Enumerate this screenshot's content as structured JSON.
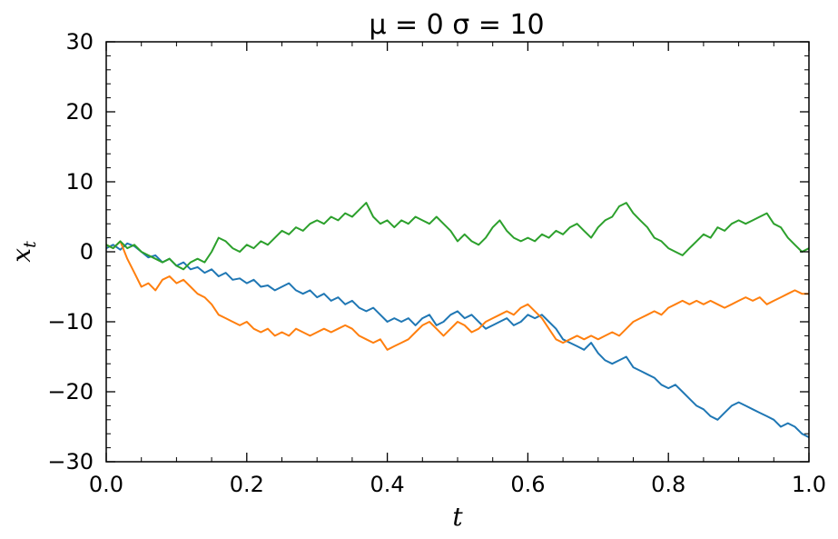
{
  "chart_data": {
    "type": "line",
    "title": "μ =  0 σ =  10",
    "xlabel": "t",
    "ylabel": "x",
    "ylabel_subscript": "t",
    "xlim": [
      0.0,
      1.0
    ],
    "ylim": [
      -30,
      30
    ],
    "x_ticks": [
      "0.0",
      "0.2",
      "0.4",
      "0.6",
      "0.8",
      "1.0"
    ],
    "y_ticks": [
      "30",
      "20",
      "10",
      "0",
      "−10",
      "−20",
      "−30"
    ],
    "grid": false,
    "legend": "none",
    "series": [
      {
        "color": "#1f77b4",
        "points": [
          [
            0.0,
            0.5
          ],
          [
            0.01,
            1.0
          ],
          [
            0.02,
            0.3
          ],
          [
            0.03,
            1.2
          ],
          [
            0.04,
            0.8
          ],
          [
            0.05,
            0.0
          ],
          [
            0.06,
            -0.8
          ],
          [
            0.07,
            -0.5
          ],
          [
            0.08,
            -1.5
          ],
          [
            0.09,
            -1.0
          ],
          [
            0.1,
            -2.0
          ],
          [
            0.11,
            -1.5
          ],
          [
            0.12,
            -2.5
          ],
          [
            0.13,
            -2.2
          ],
          [
            0.14,
            -3.0
          ],
          [
            0.15,
            -2.5
          ],
          [
            0.16,
            -3.5
          ],
          [
            0.17,
            -3.0
          ],
          [
            0.18,
            -4.0
          ],
          [
            0.19,
            -3.8
          ],
          [
            0.2,
            -4.5
          ],
          [
            0.21,
            -4.0
          ],
          [
            0.22,
            -5.0
          ],
          [
            0.23,
            -4.8
          ],
          [
            0.24,
            -5.5
          ],
          [
            0.25,
            -5.0
          ],
          [
            0.26,
            -4.5
          ],
          [
            0.27,
            -5.5
          ],
          [
            0.28,
            -6.0
          ],
          [
            0.29,
            -5.5
          ],
          [
            0.3,
            -6.5
          ],
          [
            0.31,
            -6.0
          ],
          [
            0.32,
            -7.0
          ],
          [
            0.33,
            -6.5
          ],
          [
            0.34,
            -7.5
          ],
          [
            0.35,
            -7.0
          ],
          [
            0.36,
            -8.0
          ],
          [
            0.37,
            -8.5
          ],
          [
            0.38,
            -8.0
          ],
          [
            0.39,
            -9.0
          ],
          [
            0.4,
            -10.0
          ],
          [
            0.41,
            -9.5
          ],
          [
            0.42,
            -10.0
          ],
          [
            0.43,
            -9.5
          ],
          [
            0.44,
            -10.5
          ],
          [
            0.45,
            -9.5
          ],
          [
            0.46,
            -9.0
          ],
          [
            0.47,
            -10.5
          ],
          [
            0.48,
            -10.0
          ],
          [
            0.49,
            -9.0
          ],
          [
            0.5,
            -8.5
          ],
          [
            0.51,
            -9.5
          ],
          [
            0.52,
            -9.0
          ],
          [
            0.53,
            -10.0
          ],
          [
            0.54,
            -11.0
          ],
          [
            0.55,
            -10.5
          ],
          [
            0.56,
            -10.0
          ],
          [
            0.57,
            -9.5
          ],
          [
            0.58,
            -10.5
          ],
          [
            0.59,
            -10.0
          ],
          [
            0.6,
            -9.0
          ],
          [
            0.61,
            -9.5
          ],
          [
            0.62,
            -9.0
          ],
          [
            0.63,
            -10.0
          ],
          [
            0.64,
            -11.0
          ],
          [
            0.65,
            -12.5
          ],
          [
            0.66,
            -13.0
          ],
          [
            0.67,
            -13.5
          ],
          [
            0.68,
            -14.0
          ],
          [
            0.69,
            -13.0
          ],
          [
            0.7,
            -14.5
          ],
          [
            0.71,
            -15.5
          ],
          [
            0.72,
            -16.0
          ],
          [
            0.73,
            -15.5
          ],
          [
            0.74,
            -15.0
          ],
          [
            0.75,
            -16.5
          ],
          [
            0.76,
            -17.0
          ],
          [
            0.77,
            -17.5
          ],
          [
            0.78,
            -18.0
          ],
          [
            0.79,
            -19.0
          ],
          [
            0.8,
            -19.5
          ],
          [
            0.81,
            -19.0
          ],
          [
            0.82,
            -20.0
          ],
          [
            0.83,
            -21.0
          ],
          [
            0.84,
            -22.0
          ],
          [
            0.85,
            -22.5
          ],
          [
            0.86,
            -23.5
          ],
          [
            0.87,
            -24.0
          ],
          [
            0.88,
            -23.0
          ],
          [
            0.89,
            -22.0
          ],
          [
            0.9,
            -21.5
          ],
          [
            0.91,
            -22.0
          ],
          [
            0.92,
            -22.5
          ],
          [
            0.93,
            -23.0
          ],
          [
            0.94,
            -23.5
          ],
          [
            0.95,
            -24.0
          ],
          [
            0.96,
            -25.0
          ],
          [
            0.97,
            -24.5
          ],
          [
            0.98,
            -25.0
          ],
          [
            0.99,
            -26.0
          ],
          [
            1.0,
            -26.5
          ]
        ]
      },
      {
        "color": "#ff7f0e",
        "points": [
          [
            0.0,
            1.0
          ],
          [
            0.01,
            0.5
          ],
          [
            0.02,
            1.5
          ],
          [
            0.03,
            -1.0
          ],
          [
            0.04,
            -3.0
          ],
          [
            0.05,
            -5.0
          ],
          [
            0.06,
            -4.5
          ],
          [
            0.07,
            -5.5
          ],
          [
            0.08,
            -4.0
          ],
          [
            0.09,
            -3.5
          ],
          [
            0.1,
            -4.5
          ],
          [
            0.11,
            -4.0
          ],
          [
            0.12,
            -5.0
          ],
          [
            0.13,
            -6.0
          ],
          [
            0.14,
            -6.5
          ],
          [
            0.15,
            -7.5
          ],
          [
            0.16,
            -9.0
          ],
          [
            0.17,
            -9.5
          ],
          [
            0.18,
            -10.0
          ],
          [
            0.19,
            -10.5
          ],
          [
            0.2,
            -10.0
          ],
          [
            0.21,
            -11.0
          ],
          [
            0.22,
            -11.5
          ],
          [
            0.23,
            -11.0
          ],
          [
            0.24,
            -12.0
          ],
          [
            0.25,
            -11.5
          ],
          [
            0.26,
            -12.0
          ],
          [
            0.27,
            -11.0
          ],
          [
            0.28,
            -11.5
          ],
          [
            0.29,
            -12.0
          ],
          [
            0.3,
            -11.5
          ],
          [
            0.31,
            -11.0
          ],
          [
            0.32,
            -11.5
          ],
          [
            0.33,
            -11.0
          ],
          [
            0.34,
            -10.5
          ],
          [
            0.35,
            -11.0
          ],
          [
            0.36,
            -12.0
          ],
          [
            0.37,
            -12.5
          ],
          [
            0.38,
            -13.0
          ],
          [
            0.39,
            -12.5
          ],
          [
            0.4,
            -14.0
          ],
          [
            0.41,
            -13.5
          ],
          [
            0.42,
            -13.0
          ],
          [
            0.43,
            -12.5
          ],
          [
            0.44,
            -11.5
          ],
          [
            0.45,
            -10.5
          ],
          [
            0.46,
            -10.0
          ],
          [
            0.47,
            -11.0
          ],
          [
            0.48,
            -12.0
          ],
          [
            0.49,
            -11.0
          ],
          [
            0.5,
            -10.0
          ],
          [
            0.51,
            -10.5
          ],
          [
            0.52,
            -11.5
          ],
          [
            0.53,
            -11.0
          ],
          [
            0.54,
            -10.0
          ],
          [
            0.55,
            -9.5
          ],
          [
            0.56,
            -9.0
          ],
          [
            0.57,
            -8.5
          ],
          [
            0.58,
            -9.0
          ],
          [
            0.59,
            -8.0
          ],
          [
            0.6,
            -7.5
          ],
          [
            0.61,
            -8.5
          ],
          [
            0.62,
            -9.5
          ],
          [
            0.63,
            -11.0
          ],
          [
            0.64,
            -12.5
          ],
          [
            0.65,
            -13.0
          ],
          [
            0.66,
            -12.5
          ],
          [
            0.67,
            -12.0
          ],
          [
            0.68,
            -12.5
          ],
          [
            0.69,
            -12.0
          ],
          [
            0.7,
            -12.5
          ],
          [
            0.71,
            -12.0
          ],
          [
            0.72,
            -11.5
          ],
          [
            0.73,
            -12.0
          ],
          [
            0.74,
            -11.0
          ],
          [
            0.75,
            -10.0
          ],
          [
            0.76,
            -9.5
          ],
          [
            0.77,
            -9.0
          ],
          [
            0.78,
            -8.5
          ],
          [
            0.79,
            -9.0
          ],
          [
            0.8,
            -8.0
          ],
          [
            0.81,
            -7.5
          ],
          [
            0.82,
            -7.0
          ],
          [
            0.83,
            -7.5
          ],
          [
            0.84,
            -7.0
          ],
          [
            0.85,
            -7.5
          ],
          [
            0.86,
            -7.0
          ],
          [
            0.87,
            -7.5
          ],
          [
            0.88,
            -8.0
          ],
          [
            0.89,
            -7.5
          ],
          [
            0.9,
            -7.0
          ],
          [
            0.91,
            -6.5
          ],
          [
            0.92,
            -7.0
          ],
          [
            0.93,
            -6.5
          ],
          [
            0.94,
            -7.5
          ],
          [
            0.95,
            -7.0
          ],
          [
            0.96,
            -6.5
          ],
          [
            0.97,
            -6.0
          ],
          [
            0.98,
            -5.5
          ],
          [
            0.99,
            -6.0
          ],
          [
            1.0,
            -6.0
          ]
        ]
      },
      {
        "color": "#2ca02c",
        "points": [
          [
            0.0,
            1.0
          ],
          [
            0.01,
            0.5
          ],
          [
            0.02,
            1.5
          ],
          [
            0.03,
            0.5
          ],
          [
            0.04,
            1.0
          ],
          [
            0.05,
            0.0
          ],
          [
            0.06,
            -0.5
          ],
          [
            0.07,
            -1.0
          ],
          [
            0.08,
            -1.5
          ],
          [
            0.09,
            -1.0
          ],
          [
            0.1,
            -2.0
          ],
          [
            0.11,
            -2.5
          ],
          [
            0.12,
            -1.5
          ],
          [
            0.13,
            -1.0
          ],
          [
            0.14,
            -1.5
          ],
          [
            0.15,
            0.0
          ],
          [
            0.16,
            2.0
          ],
          [
            0.17,
            1.5
          ],
          [
            0.18,
            0.5
          ],
          [
            0.19,
            0.0
          ],
          [
            0.2,
            1.0
          ],
          [
            0.21,
            0.5
          ],
          [
            0.22,
            1.5
          ],
          [
            0.23,
            1.0
          ],
          [
            0.24,
            2.0
          ],
          [
            0.25,
            3.0
          ],
          [
            0.26,
            2.5
          ],
          [
            0.27,
            3.5
          ],
          [
            0.28,
            3.0
          ],
          [
            0.29,
            4.0
          ],
          [
            0.3,
            4.5
          ],
          [
            0.31,
            4.0
          ],
          [
            0.32,
            5.0
          ],
          [
            0.33,
            4.5
          ],
          [
            0.34,
            5.5
          ],
          [
            0.35,
            5.0
          ],
          [
            0.36,
            6.0
          ],
          [
            0.37,
            7.0
          ],
          [
            0.38,
            5.0
          ],
          [
            0.39,
            4.0
          ],
          [
            0.4,
            4.5
          ],
          [
            0.41,
            3.5
          ],
          [
            0.42,
            4.5
          ],
          [
            0.43,
            4.0
          ],
          [
            0.44,
            5.0
          ],
          [
            0.45,
            4.5
          ],
          [
            0.46,
            4.0
          ],
          [
            0.47,
            5.0
          ],
          [
            0.48,
            4.0
          ],
          [
            0.49,
            3.0
          ],
          [
            0.5,
            1.5
          ],
          [
            0.51,
            2.5
          ],
          [
            0.52,
            1.5
          ],
          [
            0.53,
            1.0
          ],
          [
            0.54,
            2.0
          ],
          [
            0.55,
            3.5
          ],
          [
            0.56,
            4.5
          ],
          [
            0.57,
            3.0
          ],
          [
            0.58,
            2.0
          ],
          [
            0.59,
            1.5
          ],
          [
            0.6,
            2.0
          ],
          [
            0.61,
            1.5
          ],
          [
            0.62,
            2.5
          ],
          [
            0.63,
            2.0
          ],
          [
            0.64,
            3.0
          ],
          [
            0.65,
            2.5
          ],
          [
            0.66,
            3.5
          ],
          [
            0.67,
            4.0
          ],
          [
            0.68,
            3.0
          ],
          [
            0.69,
            2.0
          ],
          [
            0.7,
            3.5
          ],
          [
            0.71,
            4.5
          ],
          [
            0.72,
            5.0
          ],
          [
            0.73,
            6.5
          ],
          [
            0.74,
            7.0
          ],
          [
            0.75,
            5.5
          ],
          [
            0.76,
            4.5
          ],
          [
            0.77,
            3.5
          ],
          [
            0.78,
            2.0
          ],
          [
            0.79,
            1.5
          ],
          [
            0.8,
            0.5
          ],
          [
            0.81,
            0.0
          ],
          [
            0.82,
            -0.5
          ],
          [
            0.83,
            0.5
          ],
          [
            0.84,
            1.5
          ],
          [
            0.85,
            2.5
          ],
          [
            0.86,
            2.0
          ],
          [
            0.87,
            3.5
          ],
          [
            0.88,
            3.0
          ],
          [
            0.89,
            4.0
          ],
          [
            0.9,
            4.5
          ],
          [
            0.91,
            4.0
          ],
          [
            0.92,
            4.5
          ],
          [
            0.93,
            5.0
          ],
          [
            0.94,
            5.5
          ],
          [
            0.95,
            4.0
          ],
          [
            0.96,
            3.5
          ],
          [
            0.97,
            2.0
          ],
          [
            0.98,
            1.0
          ],
          [
            0.99,
            0.0
          ],
          [
            1.0,
            0.5
          ]
        ]
      }
    ]
  }
}
